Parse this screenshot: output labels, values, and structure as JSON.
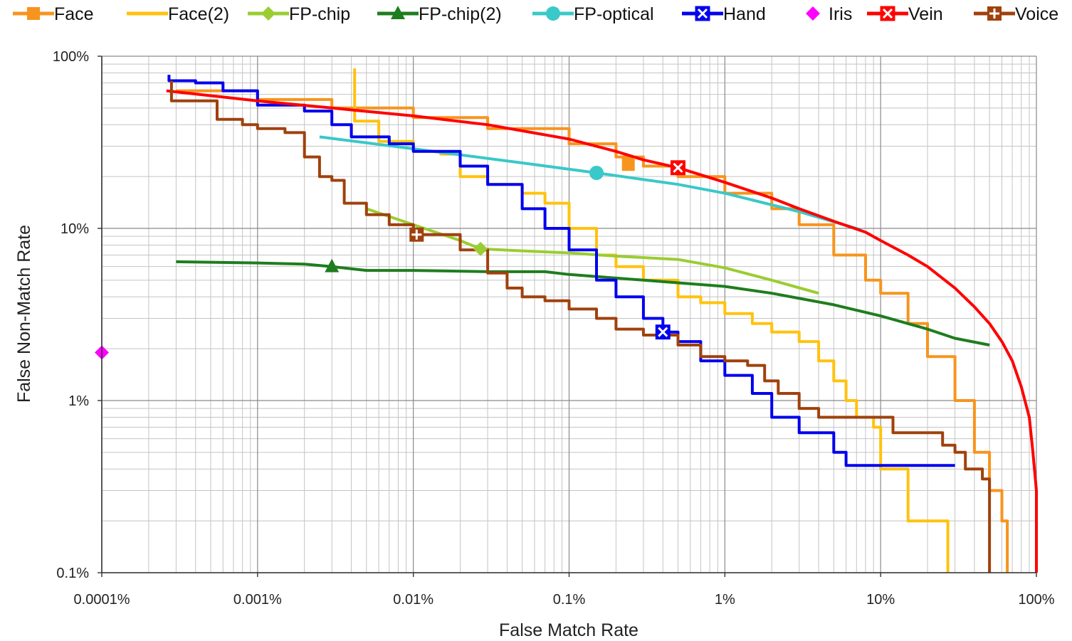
{
  "chart_data": {
    "type": "line",
    "title": "",
    "xlabel": "False Match Rate",
    "ylabel": "False Non-Match Rate",
    "x_scale": "log",
    "y_scale": "log",
    "xlim": [
      0.0001,
      100
    ],
    "ylim": [
      0.1,
      100
    ],
    "x_ticks": [
      {
        "value": 0.0001,
        "label": "0.0001%"
      },
      {
        "value": 0.001,
        "label": "0.001%"
      },
      {
        "value": 0.01,
        "label": "0.01%"
      },
      {
        "value": 0.1,
        "label": "0.1%"
      },
      {
        "value": 1,
        "label": "1%"
      },
      {
        "value": 10,
        "label": "10%"
      },
      {
        "value": 100,
        "label": "100%"
      }
    ],
    "y_ticks": [
      {
        "value": 0.1,
        "label": "0.1%"
      },
      {
        "value": 1,
        "label": "1%"
      },
      {
        "value": 10,
        "label": "10%"
      },
      {
        "value": 100,
        "label": "100%"
      }
    ],
    "grid": true,
    "legend_position": "top",
    "series": [
      {
        "name": "Face",
        "color": "#f7941d",
        "marker": "square",
        "step": true,
        "marker_at": [
          0.24,
          23.5
        ],
        "points": [
          [
            0.0003,
            63
          ],
          [
            0.001,
            56
          ],
          [
            0.003,
            50
          ],
          [
            0.01,
            44
          ],
          [
            0.03,
            38
          ],
          [
            0.1,
            31
          ],
          [
            0.2,
            26
          ],
          [
            0.3,
            23
          ],
          [
            0.5,
            20
          ],
          [
            1,
            16
          ],
          [
            2,
            13
          ],
          [
            3,
            10.5
          ],
          [
            5,
            7
          ],
          [
            8,
            5
          ],
          [
            10,
            4.2
          ],
          [
            15,
            2.8
          ],
          [
            20,
            1.8
          ],
          [
            30,
            1
          ],
          [
            40,
            0.5
          ],
          [
            50,
            0.3
          ],
          [
            60,
            0.2
          ],
          [
            65,
            0.1
          ]
        ]
      },
      {
        "name": "Face(2)",
        "color": "#ffc20e",
        "marker": "none",
        "step": true,
        "points": [
          [
            0.0042,
            85
          ],
          [
            0.0042,
            42
          ],
          [
            0.006,
            32
          ],
          [
            0.01,
            28
          ],
          [
            0.015,
            27
          ],
          [
            0.02,
            20
          ],
          [
            0.03,
            18
          ],
          [
            0.05,
            16
          ],
          [
            0.07,
            14
          ],
          [
            0.1,
            10
          ],
          [
            0.15,
            7
          ],
          [
            0.2,
            6
          ],
          [
            0.3,
            5
          ],
          [
            0.5,
            4
          ],
          [
            0.7,
            3.7
          ],
          [
            1,
            3.2
          ],
          [
            1.5,
            2.8
          ],
          [
            2,
            2.5
          ],
          [
            3,
            2.2
          ],
          [
            4,
            1.7
          ],
          [
            5,
            1.3
          ],
          [
            6,
            1
          ],
          [
            7,
            0.8
          ],
          [
            9,
            0.7
          ],
          [
            10,
            0.4
          ],
          [
            15,
            0.2
          ],
          [
            27,
            0.1
          ]
        ]
      },
      {
        "name": "FP-chip",
        "color": "#9acd32",
        "marker": "diamond",
        "step": false,
        "marker_at": [
          0.027,
          7.6
        ],
        "points": [
          [
            0.005,
            13
          ],
          [
            0.01,
            10.5
          ],
          [
            0.02,
            8.5
          ],
          [
            0.027,
            7.6
          ],
          [
            0.05,
            7.4
          ],
          [
            0.1,
            7.2
          ],
          [
            0.2,
            6.9
          ],
          [
            0.5,
            6.6
          ],
          [
            1,
            5.9
          ],
          [
            2,
            5
          ],
          [
            4,
            4.2
          ]
        ]
      },
      {
        "name": "FP-chip(2)",
        "color": "#1e7d1e",
        "marker": "triangle",
        "step": false,
        "marker_at": [
          0.003,
          6
        ],
        "points": [
          [
            0.0003,
            6.4
          ],
          [
            0.001,
            6.3
          ],
          [
            0.002,
            6.2
          ],
          [
            0.003,
            6
          ],
          [
            0.005,
            5.7
          ],
          [
            0.01,
            5.7
          ],
          [
            0.03,
            5.6
          ],
          [
            0.07,
            5.6
          ],
          [
            0.1,
            5.4
          ],
          [
            0.3,
            5
          ],
          [
            1,
            4.6
          ],
          [
            2,
            4.2
          ],
          [
            5,
            3.6
          ],
          [
            10,
            3.1
          ],
          [
            20,
            2.6
          ],
          [
            30,
            2.3
          ],
          [
            50,
            2.1
          ]
        ]
      },
      {
        "name": "FP-optical",
        "color": "#3ac8c8",
        "marker": "circle",
        "step": false,
        "marker_at": [
          0.15,
          21
        ],
        "points": [
          [
            0.0025,
            34
          ],
          [
            0.01,
            29
          ],
          [
            0.05,
            24
          ],
          [
            0.15,
            21
          ],
          [
            0.5,
            18
          ],
          [
            1,
            16
          ],
          [
            3,
            12.5
          ],
          [
            7.5,
            9.8
          ]
        ]
      },
      {
        "name": "Hand",
        "color": "#0000ee",
        "marker": "x-box",
        "step": true,
        "marker_at": [
          0.4,
          2.5
        ],
        "points": [
          [
            0.00027,
            78
          ],
          [
            0.00027,
            72
          ],
          [
            0.0004,
            70
          ],
          [
            0.0006,
            63
          ],
          [
            0.001,
            52
          ],
          [
            0.002,
            48
          ],
          [
            0.003,
            40
          ],
          [
            0.004,
            34
          ],
          [
            0.007,
            31
          ],
          [
            0.01,
            28
          ],
          [
            0.02,
            23
          ],
          [
            0.03,
            18
          ],
          [
            0.05,
            13
          ],
          [
            0.07,
            10
          ],
          [
            0.1,
            7.5
          ],
          [
            0.15,
            5
          ],
          [
            0.2,
            4
          ],
          [
            0.3,
            3
          ],
          [
            0.4,
            2.5
          ],
          [
            0.5,
            2.2
          ],
          [
            0.7,
            1.7
          ],
          [
            1,
            1.4
          ],
          [
            1.5,
            1.1
          ],
          [
            2,
            0.8
          ],
          [
            3,
            0.65
          ],
          [
            5,
            0.5
          ],
          [
            6,
            0.42
          ],
          [
            30,
            0.42
          ]
        ]
      },
      {
        "name": "Iris",
        "color": "#ff00ff",
        "marker": "diamond",
        "step": false,
        "marker_at": [
          0.0001,
          1.9
        ],
        "points": [
          [
            0.0001,
            1.9
          ]
        ]
      },
      {
        "name": "Vein",
        "color": "#ff0000",
        "marker": "x-box",
        "step": false,
        "marker_at": [
          0.5,
          22.5
        ],
        "points": [
          [
            0.00026,
            63
          ],
          [
            0.001,
            55
          ],
          [
            0.003,
            50
          ],
          [
            0.01,
            45
          ],
          [
            0.03,
            40
          ],
          [
            0.1,
            33
          ],
          [
            0.2,
            28
          ],
          [
            0.3,
            25
          ],
          [
            0.5,
            22.5
          ],
          [
            1,
            18.5
          ],
          [
            2,
            15
          ],
          [
            3,
            13
          ],
          [
            5,
            11
          ],
          [
            8,
            9.5
          ],
          [
            10,
            8.5
          ],
          [
            15,
            7
          ],
          [
            20,
            6
          ],
          [
            30,
            4.5
          ],
          [
            40,
            3.5
          ],
          [
            50,
            2.8
          ],
          [
            60,
            2.2
          ],
          [
            70,
            1.7
          ],
          [
            80,
            1.2
          ],
          [
            90,
            0.8
          ],
          [
            95,
            0.5
          ],
          [
            100,
            0.3
          ],
          [
            100,
            0.1
          ]
        ]
      },
      {
        "name": "Voice",
        "color": "#a0410d",
        "marker": "plus-box",
        "step": true,
        "marker_at": [
          0.0105,
          9.2
        ],
        "points": [
          [
            0.00028,
            72
          ],
          [
            0.00028,
            55
          ],
          [
            0.00055,
            55
          ],
          [
            0.00055,
            43
          ],
          [
            0.0008,
            43
          ],
          [
            0.0008,
            40
          ],
          [
            0.001,
            38
          ],
          [
            0.0015,
            36
          ],
          [
            0.002,
            33
          ],
          [
            0.002,
            26
          ],
          [
            0.0025,
            20
          ],
          [
            0.003,
            19
          ],
          [
            0.0036,
            14
          ],
          [
            0.005,
            12
          ],
          [
            0.007,
            10.5
          ],
          [
            0.01,
            9.2
          ],
          [
            0.02,
            7.5
          ],
          [
            0.03,
            5.5
          ],
          [
            0.04,
            4.5
          ],
          [
            0.05,
            4
          ],
          [
            0.07,
            3.8
          ],
          [
            0.1,
            3.4
          ],
          [
            0.15,
            3
          ],
          [
            0.2,
            2.6
          ],
          [
            0.3,
            2.4
          ],
          [
            0.5,
            2.1
          ],
          [
            0.7,
            1.8
          ],
          [
            1,
            1.7
          ],
          [
            1.4,
            1.6
          ],
          [
            1.8,
            1.3
          ],
          [
            2.2,
            1.1
          ],
          [
            3,
            0.9
          ],
          [
            4,
            0.8
          ],
          [
            10,
            0.8
          ],
          [
            12,
            0.65
          ],
          [
            25,
            0.55
          ],
          [
            30,
            0.5
          ],
          [
            35,
            0.4
          ],
          [
            45,
            0.35
          ],
          [
            50,
            0.1
          ]
        ]
      }
    ]
  }
}
